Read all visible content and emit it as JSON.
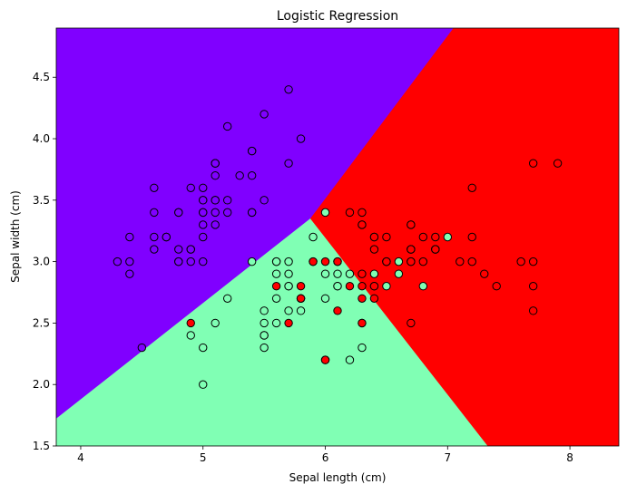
{
  "chart_data": {
    "type": "scatter",
    "title": "Logistic Regression",
    "xlabel": "Sepal length (cm)",
    "ylabel": "Sepal width (cm)",
    "xlim": [
      3.8,
      8.4
    ],
    "ylim": [
      1.5,
      4.9
    ],
    "xticks": [
      4,
      5,
      6,
      7,
      8
    ],
    "yticks": [
      1.5,
      2.0,
      2.5,
      3.0,
      3.5,
      4.0,
      4.5
    ],
    "xtick_labels": [
      "4",
      "5",
      "6",
      "7",
      "8"
    ],
    "ytick_labels": [
      "1.5",
      "2.0",
      "2.5",
      "3.0",
      "3.5",
      "4.0",
      "4.5"
    ],
    "grid": false,
    "region_colors": {
      "setosa": "#8000ff",
      "versicolor": "#80ffb4",
      "virginica": "#ff0000"
    },
    "decision_regions": {
      "setosa": [
        [
          3.8,
          1.72
        ],
        [
          5.88,
          3.35
        ],
        [
          7.05,
          4.9
        ],
        [
          3.8,
          4.9
        ]
      ],
      "versicolor": [
        [
          3.8,
          1.5
        ],
        [
          7.33,
          1.5
        ],
        [
          5.88,
          3.35
        ],
        [
          3.8,
          1.72
        ]
      ],
      "virginica": [
        [
          5.88,
          3.35
        ],
        [
          7.33,
          1.5
        ],
        [
          8.4,
          1.5
        ],
        [
          8.4,
          4.9
        ],
        [
          7.05,
          4.9
        ]
      ]
    },
    "series": [
      {
        "marker_fill": "#8000ff",
        "points": [
          [
            5.1,
            3.5
          ],
          [
            4.9,
            3.0
          ],
          [
            4.7,
            3.2
          ],
          [
            4.6,
            3.1
          ],
          [
            5.0,
            3.6
          ],
          [
            5.4,
            3.9
          ],
          [
            4.6,
            3.4
          ],
          [
            5.0,
            3.4
          ],
          [
            4.4,
            2.9
          ],
          [
            4.9,
            3.1
          ],
          [
            5.4,
            3.7
          ],
          [
            4.8,
            3.4
          ],
          [
            4.8,
            3.0
          ],
          [
            4.3,
            3.0
          ],
          [
            5.8,
            4.0
          ],
          [
            5.7,
            4.4
          ],
          [
            5.4,
            3.9
          ],
          [
            5.1,
            3.5
          ],
          [
            5.7,
            3.8
          ],
          [
            5.1,
            3.8
          ],
          [
            5.4,
            3.4
          ],
          [
            5.1,
            3.7
          ],
          [
            4.6,
            3.6
          ],
          [
            5.1,
            3.3
          ],
          [
            4.8,
            3.4
          ],
          [
            5.0,
            3.0
          ],
          [
            5.0,
            3.4
          ],
          [
            5.2,
            3.5
          ],
          [
            5.2,
            3.4
          ],
          [
            4.7,
            3.2
          ],
          [
            4.8,
            3.1
          ],
          [
            5.4,
            3.4
          ],
          [
            5.2,
            4.1
          ],
          [
            5.5,
            4.2
          ],
          [
            4.9,
            3.1
          ],
          [
            5.0,
            3.2
          ],
          [
            5.5,
            3.5
          ],
          [
            4.9,
            3.6
          ],
          [
            4.4,
            3.0
          ],
          [
            5.1,
            3.4
          ],
          [
            5.0,
            3.5
          ],
          [
            4.5,
            2.3
          ],
          [
            4.4,
            3.2
          ],
          [
            5.0,
            3.5
          ],
          [
            5.1,
            3.8
          ],
          [
            4.8,
            3.0
          ],
          [
            5.1,
            3.8
          ],
          [
            4.6,
            3.2
          ],
          [
            5.3,
            3.7
          ],
          [
            5.0,
            3.3
          ]
        ]
      },
      {
        "marker_fill": "#80ffb4",
        "points": [
          [
            7.0,
            3.2
          ],
          [
            6.4,
            3.2
          ],
          [
            6.9,
            3.1
          ],
          [
            5.5,
            2.3
          ],
          [
            6.5,
            2.8
          ],
          [
            5.7,
            2.8
          ],
          [
            6.3,
            3.3
          ],
          [
            4.9,
            2.4
          ],
          [
            6.6,
            2.9
          ],
          [
            5.2,
            2.7
          ],
          [
            5.0,
            2.0
          ],
          [
            5.9,
            3.0
          ],
          [
            6.0,
            2.2
          ],
          [
            6.1,
            2.9
          ],
          [
            5.6,
            2.9
          ],
          [
            6.7,
            3.1
          ],
          [
            5.6,
            3.0
          ],
          [
            5.8,
            2.7
          ],
          [
            6.2,
            2.2
          ],
          [
            5.6,
            2.5
          ],
          [
            5.9,
            3.2
          ],
          [
            6.1,
            2.8
          ],
          [
            6.3,
            2.5
          ],
          [
            6.1,
            2.8
          ],
          [
            6.4,
            2.9
          ],
          [
            6.6,
            3.0
          ],
          [
            6.8,
            2.8
          ],
          [
            6.7,
            3.0
          ],
          [
            6.0,
            2.9
          ],
          [
            5.7,
            2.6
          ],
          [
            5.5,
            2.4
          ],
          [
            5.5,
            2.4
          ],
          [
            5.8,
            2.7
          ],
          [
            6.0,
            2.7
          ],
          [
            5.4,
            3.0
          ],
          [
            6.0,
            3.4
          ],
          [
            6.7,
            3.1
          ],
          [
            6.3,
            2.3
          ],
          [
            5.6,
            3.0
          ],
          [
            5.5,
            2.5
          ],
          [
            5.5,
            2.6
          ],
          [
            6.1,
            3.0
          ],
          [
            5.8,
            2.6
          ],
          [
            5.0,
            2.3
          ],
          [
            5.6,
            2.7
          ],
          [
            5.7,
            3.0
          ],
          [
            5.7,
            2.9
          ],
          [
            6.2,
            2.9
          ],
          [
            5.1,
            2.5
          ],
          [
            5.7,
            2.8
          ]
        ]
      },
      {
        "marker_fill": "#ff0000",
        "points": [
          [
            6.3,
            3.3
          ],
          [
            5.8,
            2.7
          ],
          [
            7.1,
            3.0
          ],
          [
            6.3,
            2.9
          ],
          [
            6.5,
            3.0
          ],
          [
            7.6,
            3.0
          ],
          [
            4.9,
            2.5
          ],
          [
            7.3,
            2.9
          ],
          [
            6.7,
            2.5
          ],
          [
            7.2,
            3.6
          ],
          [
            6.5,
            3.2
          ],
          [
            6.4,
            2.7
          ],
          [
            6.8,
            3.0
          ],
          [
            5.7,
            2.5
          ],
          [
            5.8,
            2.8
          ],
          [
            6.4,
            3.2
          ],
          [
            6.5,
            3.0
          ],
          [
            7.7,
            3.8
          ],
          [
            7.7,
            2.6
          ],
          [
            6.0,
            2.2
          ],
          [
            6.9,
            3.2
          ],
          [
            5.6,
            2.8
          ],
          [
            7.7,
            2.8
          ],
          [
            6.3,
            2.7
          ],
          [
            6.7,
            3.3
          ],
          [
            7.2,
            3.2
          ],
          [
            6.2,
            2.8
          ],
          [
            6.1,
            3.0
          ],
          [
            6.4,
            2.8
          ],
          [
            7.2,
            3.0
          ],
          [
            7.4,
            2.8
          ],
          [
            7.9,
            3.8
          ],
          [
            6.4,
            2.8
          ],
          [
            6.3,
            2.8
          ],
          [
            6.1,
            2.6
          ],
          [
            7.7,
            3.0
          ],
          [
            6.3,
            3.4
          ],
          [
            6.4,
            3.1
          ],
          [
            6.0,
            3.0
          ],
          [
            6.9,
            3.1
          ],
          [
            6.7,
            3.1
          ],
          [
            6.9,
            3.1
          ],
          [
            5.8,
            2.7
          ],
          [
            6.8,
            3.2
          ],
          [
            6.7,
            3.3
          ],
          [
            6.7,
            3.0
          ],
          [
            6.3,
            2.5
          ],
          [
            6.5,
            3.0
          ],
          [
            6.2,
            3.4
          ],
          [
            5.9,
            3.0
          ]
        ]
      }
    ]
  }
}
